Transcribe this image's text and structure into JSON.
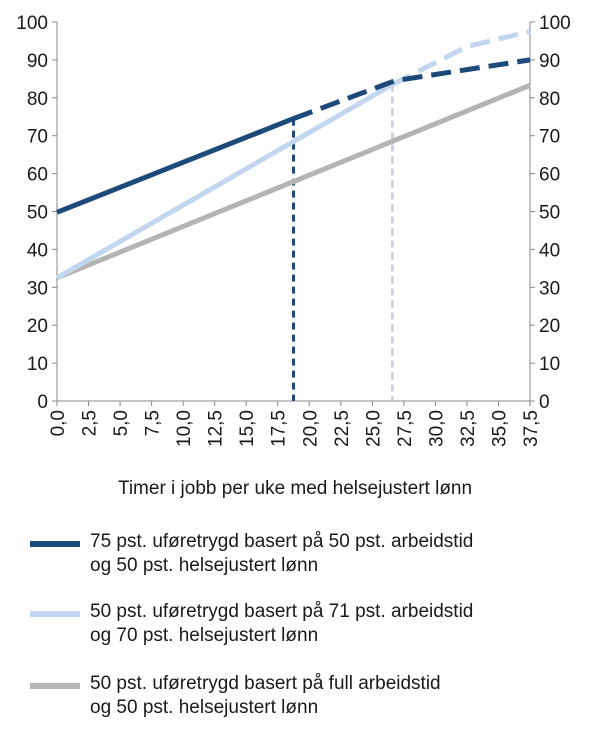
{
  "chart_data": {
    "type": "line",
    "title": "",
    "xlabel": "Timer i jobb per uke med helsejustert lønn",
    "ylabel": "",
    "xlim": [
      0,
      37.5
    ],
    "ylim": [
      0,
      100
    ],
    "x_ticks": [
      "0,0",
      "2,5",
      "5,0",
      "7,5",
      "10,0",
      "12,5",
      "15,0",
      "17,5",
      "20,0",
      "22,5",
      "25,0",
      "27,5",
      "30,0",
      "32,5",
      "35,0",
      "37,5"
    ],
    "y_ticks": [
      "0",
      "10",
      "20",
      "30",
      "40",
      "50",
      "60",
      "70",
      "80",
      "90",
      "100"
    ],
    "grid": false,
    "legend_position": "bottom",
    "series": [
      {
        "name": "75 pst. uføretrygd basert på 50 pst. arbeidstid\nog 50 pst. helsejustert lønn",
        "color": "#1d4a7b",
        "solid": [
          [
            0,
            49.8
          ],
          [
            18.75,
            74.5
          ]
        ],
        "dashed": [
          [
            18.75,
            74.5
          ],
          [
            26.8,
            84.5
          ],
          [
            37.5,
            90.0
          ]
        ],
        "vertical_marker_x": 18.75
      },
      {
        "name": "50 pst. uføretrygd basert på 71 pst. arbeidstid\nog 70 pst. helsejustert lønn",
        "color": "#c2d6ef",
        "solid": [
          [
            0,
            32.5
          ],
          [
            26.6,
            83.5
          ]
        ],
        "dashed": [
          [
            26.6,
            83.5
          ],
          [
            32.5,
            93.5
          ],
          [
            37.5,
            97.5
          ]
        ],
        "vertical_marker_x": 26.6
      },
      {
        "name": "50 pst. uføretrygd basert på full arbeidstid\nog 50 pst. helsejustert lønn",
        "color": "#b4b4b4",
        "solid": [
          [
            0,
            32.5
          ],
          [
            37.5,
            83.3
          ]
        ],
        "dashed": []
      }
    ]
  }
}
